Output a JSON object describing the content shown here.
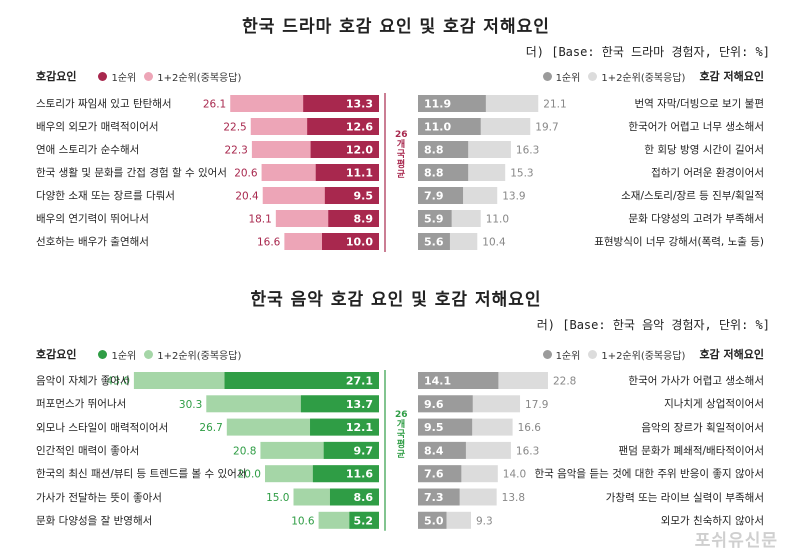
{
  "charts": [
    {
      "id": "drama",
      "title": "한국 드라마 호감 요인 및 호감 저해요인",
      "base_note": "더) [Base: 한국 드라마 경험자, 단위: %]",
      "left_header": "호감요인",
      "left_legend": [
        "1순위",
        "1+2순위(중복응답)"
      ],
      "right_legend": [
        "1순위",
        "1+2순위(중복응답)"
      ],
      "right_header": "호감 저해요인",
      "avg_label": "26개국 평균",
      "colors": {
        "first": "#a8284e",
        "total": "#eda5b7",
        "avg": "#a8284e",
        "neg_first": "#9b9b9b",
        "neg_total": "#dcdcdc"
      },
      "positive": [
        {
          "label": "스토리가 짜임새 있고 탄탄해서",
          "first": 13.3,
          "total": 26.1
        },
        {
          "label": "배우의 외모가 매력적이어서",
          "first": 12.6,
          "total": 22.5
        },
        {
          "label": "연애 스토리가 순수해서",
          "first": 12.0,
          "total": 22.3
        },
        {
          "label": "한국 생활 및 문화를 간접 경험 할 수 있어서",
          "first": 11.1,
          "total": 20.6
        },
        {
          "label": "다양한 소재 또는 장르를 다뤄서",
          "first": 9.5,
          "total": 20.4
        },
        {
          "label": "배우의 연기력이 뛰어나서",
          "first": 8.9,
          "total": 18.1
        },
        {
          "label": "선호하는 배우가 출연해서",
          "first": 10.0,
          "total": 16.6
        }
      ],
      "negative": [
        {
          "label": "번역 자막/더빙으로 보기 불편",
          "first": 11.9,
          "total": 21.1
        },
        {
          "label": "한국어가 어렵고 너무 생소해서",
          "first": 11.0,
          "total": 19.7
        },
        {
          "label": "한 회당 방영 시간이 길어서",
          "first": 8.8,
          "total": 16.3
        },
        {
          "label": "접하기 어려운 환경이어서",
          "first": 8.8,
          "total": 15.3
        },
        {
          "label": "소재/스토리/장르 등 진부/획일적",
          "first": 7.9,
          "total": 13.9
        },
        {
          "label": "문화 다양성의 고려가 부족해서",
          "first": 5.9,
          "total": 11.0
        },
        {
          "label": "표현방식이 너무 강해서(폭력, 노출 등)",
          "first": 5.6,
          "total": 10.4
        }
      ]
    },
    {
      "id": "music",
      "title": "한국 음악 호감 요인 및 호감 저해요인",
      "base_note": "러) [Base: 한국 음악 경험자, 단위: %]",
      "left_header": "호감요인",
      "left_legend": [
        "1순위",
        "1+2순위(중복응답)"
      ],
      "right_legend": [
        "1순위",
        "1+2순위(중복응답)"
      ],
      "right_header": "호감 저해요인",
      "avg_label": "26개국 평균",
      "colors": {
        "first": "#2f9d45",
        "total": "#a5d6a7",
        "avg": "#2f9d45",
        "neg_first": "#9b9b9b",
        "neg_total": "#dcdcdc"
      },
      "positive": [
        {
          "label": "음악이 자체가 좋아서",
          "first": 27.1,
          "total": 43.0
        },
        {
          "label": "퍼포먼스가 뛰어나서",
          "first": 13.7,
          "total": 30.3
        },
        {
          "label": "외모나 스타일이 매력적이어서",
          "first": 12.1,
          "total": 26.7
        },
        {
          "label": "인간적인 매력이 좋아서",
          "first": 9.7,
          "total": 20.8
        },
        {
          "label": "한국의 최신 패션/뷰티 등 트렌드를 볼 수 있어서",
          "first": 11.6,
          "total": 20.0
        },
        {
          "label": "가사가 전달하는 뜻이 좋아서",
          "first": 8.6,
          "total": 15.0
        },
        {
          "label": "문화 다양성을 잘 반영해서",
          "first": 5.2,
          "total": 10.6
        }
      ],
      "negative": [
        {
          "label": "한국어 가사가 어렵고 생소해서",
          "first": 14.1,
          "total": 22.8
        },
        {
          "label": "지나치게 상업적이어서",
          "first": 9.6,
          "total": 17.9
        },
        {
          "label": "음악의 장르가 획일적이어서",
          "first": 9.5,
          "total": 16.6
        },
        {
          "label": "팬덤 문화가 폐쇄적/배타적이어서",
          "first": 8.4,
          "total": 16.3
        },
        {
          "label": "한국 음악을 듣는 것에 대한 주위 반응이 좋지 않아서",
          "first": 7.6,
          "total": 14.0
        },
        {
          "label": "가창력 또는 라이브 실력이 부족해서",
          "first": 7.3,
          "total": 13.8
        },
        {
          "label": "외모가 친숙하지 않아서",
          "first": 5.0,
          "total": 9.3
        }
      ]
    }
  ],
  "chart_data": [
    {
      "type": "bar",
      "title": "한국 드라마 호감 요인 및 호감 저해요인",
      "categories": [
        "스토리가 짜임새 있고 탄탄해서",
        "배우의 외모가 매력적이어서",
        "연애 스토리가 순수해서",
        "한국 생활 및 문화를 간접 경험 할 수 있어서",
        "다양한 소재 또는 장르를 다뤄서",
        "배우의 연기력이 뛰어나서",
        "선호하는 배우가 출연해서"
      ],
      "series": [
        {
          "name": "1순위",
          "values": [
            13.3,
            12.6,
            12.0,
            11.1,
            9.5,
            8.9,
            10.0
          ]
        },
        {
          "name": "1+2순위(중복응답)",
          "values": [
            26.1,
            22.5,
            22.3,
            20.6,
            20.4,
            18.1,
            16.6
          ]
        }
      ]
    },
    {
      "type": "bar",
      "title": "한국 드라마 호감 요인 및 호감 저해요인",
      "categories": [
        "번역 자막/더빙으로 보기 불편",
        "한국어가 어렵고 너무 생소해서",
        "한 회당 방영 시간이 길어서",
        "접하기 어려운 환경이어서",
        "소재/스토리/장르 등 진부/획일적",
        "문화 다양성의 고려가 부족해서",
        "표현방식이 너무 강해서(폭력, 노출 등)"
      ],
      "series": [
        {
          "name": "1순위",
          "values": [
            11.9,
            11.0,
            8.8,
            8.8,
            7.9,
            5.9,
            5.6
          ]
        },
        {
          "name": "1+2순위(중복응답)",
          "values": [
            21.1,
            19.7,
            16.3,
            15.3,
            13.9,
            11.0,
            10.4
          ]
        }
      ]
    },
    {
      "type": "bar",
      "title": "한국 음악 호감 요인 및 호감 저해요인",
      "categories": [
        "음악이 자체가 좋아서",
        "퍼포먼스가 뛰어나서",
        "외모나 스타일이 매력적이어서",
        "인간적인 매력이 좋아서",
        "한국의 최신 패션/뷰티 등 트렌드를 볼 수 있어서",
        "가사가 전달하는 뜻이 좋아서",
        "문화 다양성을 잘 반영해서"
      ],
      "series": [
        {
          "name": "1순위",
          "values": [
            27.1,
            13.7,
            12.1,
            9.7,
            11.6,
            8.6,
            5.2
          ]
        },
        {
          "name": "1+2순위(중복응답)",
          "values": [
            43.0,
            30.3,
            26.7,
            20.8,
            20.0,
            15.0,
            10.6
          ]
        }
      ]
    },
    {
      "type": "bar",
      "title": "한국 음악 호감 요인 및 호감 저해요인",
      "categories": [
        "한국어 가사가 어렵고 생소해서",
        "지나치게 상업적이어서",
        "음악의 장르가 획일적이어서",
        "팬덤 문화가 폐쇄적/배타적이어서",
        "한국 음악을 듣는 것에 대한 주위 반응이 좋지 않아서",
        "가창력 또는 라이브 실력이 부족해서",
        "외모가 친숙하지 않아서"
      ],
      "series": [
        {
          "name": "1순위",
          "values": [
            14.1,
            9.6,
            9.5,
            8.4,
            7.6,
            7.3,
            5.0
          ]
        },
        {
          "name": "1+2순위(중복응답)",
          "values": [
            22.8,
            17.9,
            16.6,
            16.3,
            14.0,
            13.8,
            9.3
          ]
        }
      ]
    }
  ],
  "watermark": "포쉬유신문"
}
